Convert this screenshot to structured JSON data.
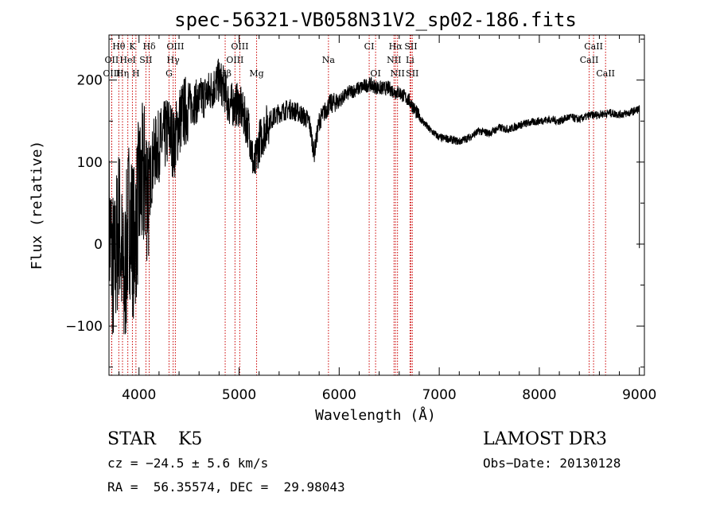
{
  "chart_data": {
    "type": "line",
    "title": "spec-56321-VB058N31V2_sp02-186.fits",
    "xlabel": "Wavelength (Å)",
    "ylabel": "Flux (relative)",
    "xlim": [
      3700,
      9050
    ],
    "ylim": [
      -160,
      255
    ],
    "xticks": [
      4000,
      5000,
      6000,
      7000,
      8000,
      9000
    ],
    "yticks": [
      -100,
      0,
      100,
      200
    ],
    "series": [
      {
        "name": "flux",
        "x": [
          3700,
          3750,
          3800,
          3850,
          3900,
          3950,
          4000,
          4050,
          4100,
          4150,
          4200,
          4250,
          4300,
          4350,
          4400,
          4450,
          4500,
          4600,
          4700,
          4800,
          4850,
          4900,
          5000,
          5100,
          5150,
          5200,
          5300,
          5400,
          5500,
          5600,
          5700,
          5750,
          5800,
          5850,
          5900,
          6000,
          6100,
          6200,
          6300,
          6400,
          6500,
          6560,
          6600,
          6700,
          6800,
          6900,
          7000,
          7100,
          7200,
          7300,
          7400,
          7500,
          7600,
          7700,
          7800,
          7900,
          8000,
          8100,
          8200,
          8300,
          8400,
          8500,
          8600,
          8700,
          8800,
          8900,
          9000
        ],
        "y": [
          20,
          -40,
          30,
          -60,
          40,
          0,
          60,
          80,
          70,
          110,
          120,
          130,
          140,
          120,
          150,
          160,
          170,
          175,
          185,
          200,
          190,
          170,
          170,
          140,
          90,
          125,
          150,
          160,
          165,
          160,
          150,
          110,
          150,
          160,
          170,
          175,
          185,
          190,
          195,
          190,
          190,
          185,
          185,
          175,
          155,
          140,
          130,
          128,
          125,
          130,
          138,
          135,
          142,
          140,
          145,
          148,
          150,
          152,
          150,
          155,
          152,
          157,
          158,
          160,
          158,
          160,
          165
        ]
      }
    ],
    "lines": [
      {
        "name": "Hθ",
        "x": 3798,
        "row": 0
      },
      {
        "name": "K",
        "x": 3934,
        "row": 0
      },
      {
        "name": "Hδ",
        "x": 4102,
        "row": 0
      },
      {
        "name": "OIII",
        "x": 4363,
        "row": 0
      },
      {
        "name": "OIII",
        "x": 5007,
        "row": 0
      },
      {
        "name": "CI",
        "x": 6300,
        "row": 0
      },
      {
        "name": "Hα",
        "x": 6563,
        "row": 0
      },
      {
        "name": "SII",
        "x": 6717,
        "row": 0
      },
      {
        "name": "CaII",
        "x": 8542,
        "row": 0
      },
      {
        "name": "OII",
        "x": 3727,
        "row": 1
      },
      {
        "name": "HeI",
        "x": 3888,
        "row": 1
      },
      {
        "name": "SII",
        "x": 4069,
        "row": 1
      },
      {
        "name": "Hγ",
        "x": 4341,
        "row": 1
      },
      {
        "name": "OIII",
        "x": 4959,
        "row": 1
      },
      {
        "name": "Na",
        "x": 5893,
        "row": 1
      },
      {
        "name": "NII",
        "x": 6548,
        "row": 1
      },
      {
        "name": "Li",
        "x": 6708,
        "row": 1
      },
      {
        "name": "CaII",
        "x": 8498,
        "row": 1
      },
      {
        "name": "OIII",
        "x": 3727,
        "row": 2
      },
      {
        "name": "Hη",
        "x": 3835,
        "row": 2
      },
      {
        "name": "H",
        "x": 3969,
        "row": 2
      },
      {
        "name": "G",
        "x": 4300,
        "row": 2
      },
      {
        "name": "Hβ",
        "x": 4861,
        "row": 2
      },
      {
        "name": "Mg",
        "x": 5175,
        "row": 2
      },
      {
        "name": "OI",
        "x": 6364,
        "row": 2
      },
      {
        "name": "NII",
        "x": 6583,
        "row": 2
      },
      {
        "name": "SII",
        "x": 6731,
        "row": 2
      },
      {
        "name": "CaII",
        "x": 8662,
        "row": 2
      }
    ]
  },
  "info": {
    "class_line": "STAR    K5",
    "survey": "LAMOST DR3",
    "cz": "cz = −24.5 ± 5.6 km/s",
    "obs_date": "Obs−Date: 20130128",
    "radec": "RA =  56.35574, DEC =  29.98043"
  },
  "colors": {
    "line": "#000000",
    "marker": "#cc0000",
    "background": "#ffffff"
  }
}
